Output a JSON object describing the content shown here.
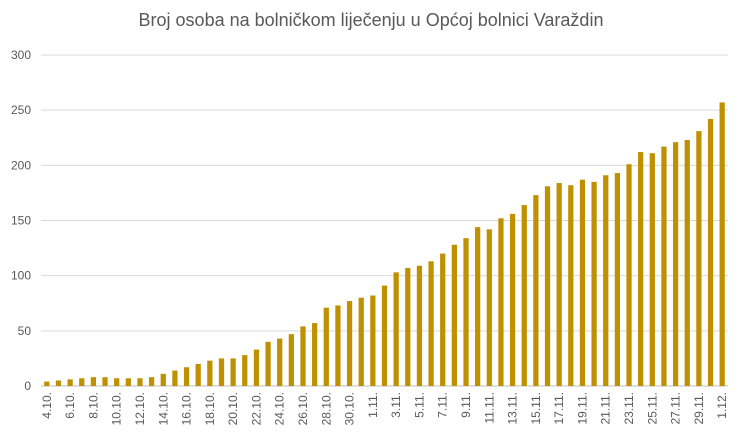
{
  "chart_data": {
    "type": "bar",
    "title": "Broj osoba na bolničkom liječenju u Općoj bolnici Varaždin",
    "xlabel": "",
    "ylabel": "",
    "ylim": [
      0,
      300
    ],
    "yticks": [
      0,
      50,
      100,
      150,
      200,
      250,
      300
    ],
    "grid": "horizontal",
    "bar_color": "#BF9000",
    "categories": [
      "4.10.",
      "5.10.",
      "6.10.",
      "7.10.",
      "8.10.",
      "9.10.",
      "10.10.",
      "11.10.",
      "12.10.",
      "13.10.",
      "14.10.",
      "15.10.",
      "16.10.",
      "17.10.",
      "18.10.",
      "19.10.",
      "20.10.",
      "21.10.",
      "22.10.",
      "23.10.",
      "24.10.",
      "25.10.",
      "26.10.",
      "27.10.",
      "28.10.",
      "29.10.",
      "30.10.",
      "31.10.",
      "1.11.",
      "2.11.",
      "3.11.",
      "4.11.",
      "5.11.",
      "6.11.",
      "7.11.",
      "8.11.",
      "9.11.",
      "10.11.",
      "11.11.",
      "12.11.",
      "13.11.",
      "14.11.",
      "15.11.",
      "16.11.",
      "17.11.",
      "18.11.",
      "19.11.",
      "20.11.",
      "21.11.",
      "22.11.",
      "23.11.",
      "24.11.",
      "25.11.",
      "26.11.",
      "27.11.",
      "28.11.",
      "29.11.",
      "30.11.",
      "1.12."
    ],
    "tick_labels": [
      "4.10.",
      "6.10.",
      "8.10.",
      "10.10.",
      "12.10.",
      "14.10.",
      "16.10.",
      "18.10.",
      "20.10.",
      "22.10.",
      "24.10.",
      "26.10.",
      "28.10.",
      "30.10.",
      "1.11.",
      "3.11.",
      "5.11.",
      "7.11.",
      "9.11.",
      "11.11.",
      "13.11.",
      "15.11.",
      "17.11.",
      "19.11.",
      "21.11.",
      "23.11.",
      "25.11.",
      "27.11.",
      "29.11.",
      "1.12."
    ],
    "values": [
      4,
      5,
      6,
      7,
      8,
      8,
      7,
      7,
      7,
      8,
      11,
      14,
      17,
      20,
      23,
      25,
      25,
      28,
      33,
      40,
      43,
      47,
      54,
      57,
      71,
      73,
      77,
      80,
      82,
      91,
      103,
      107,
      109,
      113,
      120,
      128,
      134,
      144,
      142,
      152,
      156,
      164,
      173,
      181,
      184,
      182,
      187,
      185,
      191,
      193,
      201,
      212,
      211,
      217,
      221,
      223,
      231,
      242,
      257
    ]
  }
}
